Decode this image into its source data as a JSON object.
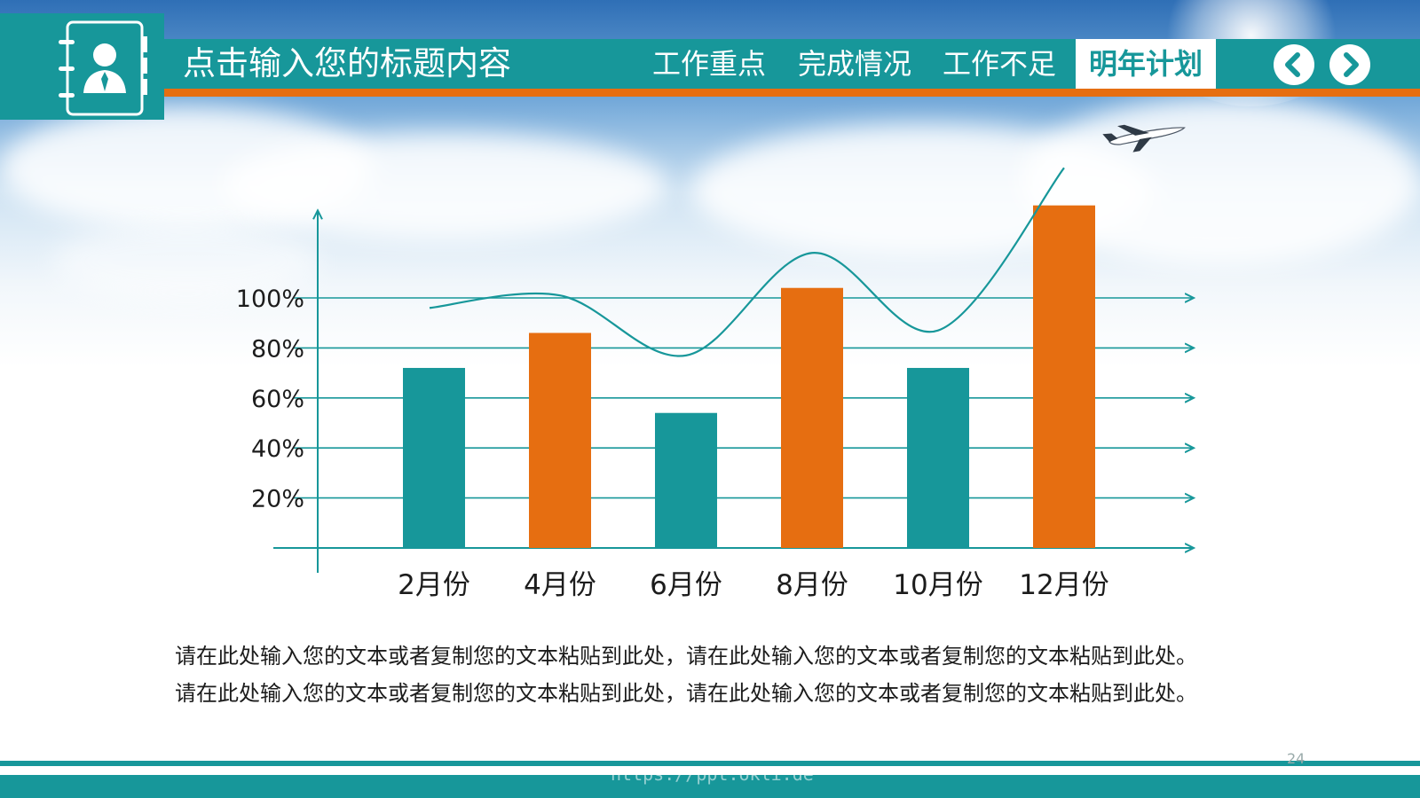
{
  "header": {
    "title": "点击输入您的标题内容",
    "nav": [
      {
        "label": "工作重点",
        "active": false
      },
      {
        "label": "完成情况",
        "active": false
      },
      {
        "label": "工作不足",
        "active": false
      },
      {
        "label": "明年计划",
        "active": true
      }
    ],
    "prev_icon": "chevron-left-icon",
    "next_icon": "chevron-right-icon",
    "logo_icon": "contact-book-icon"
  },
  "colors": {
    "teal": "#17979a",
    "orange": "#e66e11"
  },
  "chart_data": {
    "type": "bar",
    "categories": [
      "2月份",
      "4月份",
      "6月份",
      "8月份",
      "10月份",
      "12月份"
    ],
    "values": [
      72,
      86,
      54,
      104,
      72,
      137
    ],
    "bar_colors": [
      "#17979a",
      "#e66e11",
      "#17979a",
      "#e66e11",
      "#17979a",
      "#e66e11"
    ],
    "y_ticks": [
      {
        "value": 20,
        "label": "20%"
      },
      {
        "value": 40,
        "label": "40%"
      },
      {
        "value": 60,
        "label": "60%"
      },
      {
        "value": 80,
        "label": "80%"
      },
      {
        "value": 100,
        "label": "100%"
      }
    ],
    "ylim": [
      -12,
      135
    ],
    "trend_line": [
      {
        "x": 0,
        "y": 96
      },
      {
        "x": 1,
        "y": 101
      },
      {
        "x": 2,
        "y": 77
      },
      {
        "x": 3,
        "y": 118
      },
      {
        "x": 4,
        "y": 87
      },
      {
        "x": 5,
        "y": 152
      }
    ],
    "grid": true,
    "decoration_icon": "airplane-icon"
  },
  "caption": {
    "lines": [
      "请在此处输入您的文本或者复制您的文本粘贴到此处，请在此处输入您的文本或者复制您的文本粘贴到此处。",
      "请在此处输入您的文本或者复制您的文本粘贴到此处，请在此处输入您的文本或者复制您的文本粘贴到此处。"
    ]
  },
  "footer": {
    "watermark": "https://ppt.okli.de",
    "page_number": "24"
  }
}
